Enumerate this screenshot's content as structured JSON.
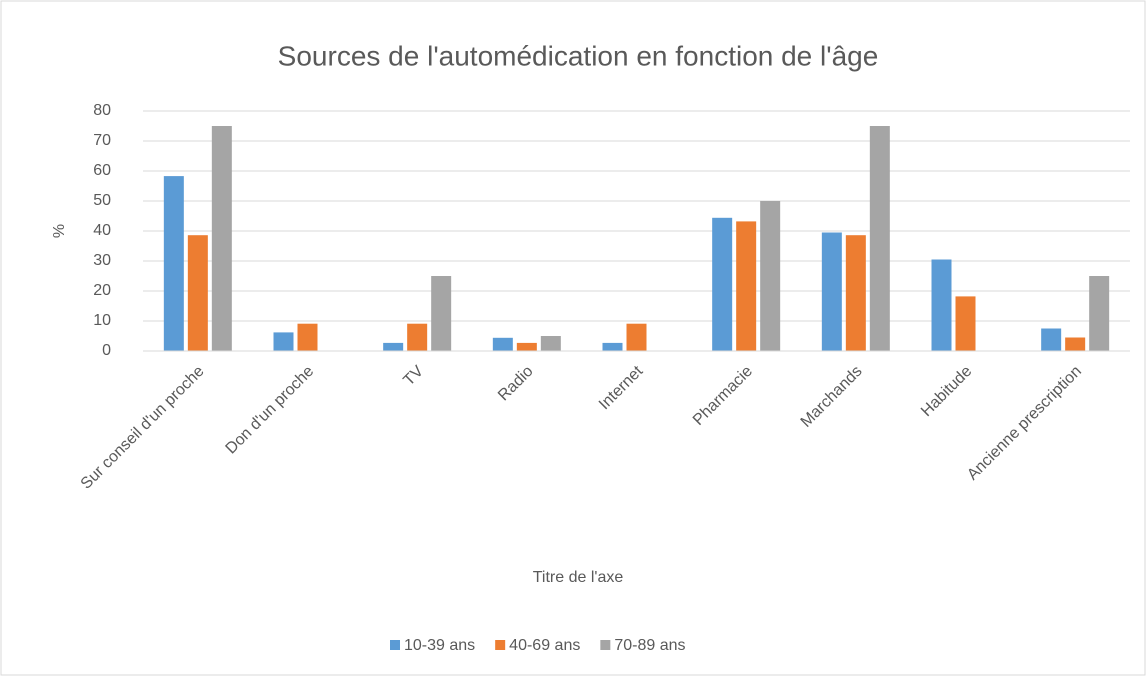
{
  "chart_data": {
    "type": "bar",
    "title": "Sources de l'automédication en fonction de l'âge",
    "categories": [
      "Sur conseil d'un proche",
      "Don d'un proche",
      "TV",
      "Radio",
      "Internet",
      "Pharmacie",
      "Marchands",
      "Habitude",
      "Ancienne prescription"
    ],
    "series": [
      {
        "name": "10-39 ans",
        "color": "#5b9bd5",
        "values": [
          58.3,
          6.2,
          2.7,
          4.4,
          2.7,
          44.4,
          39.5,
          30.5,
          7.5
        ]
      },
      {
        "name": "40-69 ans",
        "color": "#ed7d31",
        "values": [
          38.6,
          9.1,
          9.1,
          2.7,
          9.1,
          43.2,
          38.6,
          18.2,
          4.5
        ]
      },
      {
        "name": "70-89 ans",
        "color": "#a5a5a5",
        "values": [
          75,
          0,
          25,
          5,
          0,
          50,
          75,
          0,
          25
        ]
      }
    ],
    "xlabel": "Titre de l'axe",
    "ylabel": "%",
    "ylim": [
      0,
      80
    ],
    "yticks": [
      0,
      10,
      20,
      30,
      40,
      50,
      60,
      70,
      80
    ],
    "grid": true,
    "legend": "bottom"
  }
}
